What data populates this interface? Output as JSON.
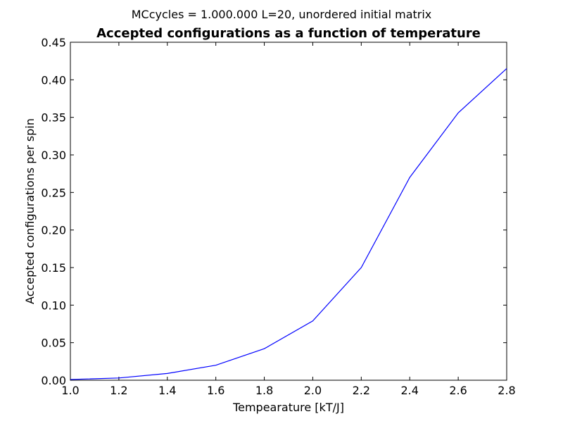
{
  "chart_data": {
    "type": "line",
    "suptitle": "MCcycles = 1.000.000 L=20, unordered initial matrix",
    "title": "Accepted configurations as a function of temperature",
    "xlabel": "Tempearature [kT/J]",
    "ylabel": "Accepted configurations per spin",
    "xlim": [
      1.0,
      2.8
    ],
    "ylim": [
      0.0,
      0.45
    ],
    "xticks": [
      "1.0",
      "1.2",
      "1.4",
      "1.6",
      "1.8",
      "2.0",
      "2.2",
      "2.4",
      "2.6",
      "2.8"
    ],
    "yticks": [
      "0.00",
      "0.05",
      "0.10",
      "0.15",
      "0.20",
      "0.25",
      "0.30",
      "0.35",
      "0.40",
      "0.45"
    ],
    "grid": false,
    "line_color": "#0000ff",
    "series": [
      {
        "x": [
          1.0,
          1.2,
          1.4,
          1.6,
          1.8,
          2.0,
          2.2,
          2.4,
          2.6,
          2.8
        ],
        "values": [
          0.001,
          0.003,
          0.009,
          0.02,
          0.042,
          0.079,
          0.15,
          0.27,
          0.356,
          0.415
        ]
      }
    ]
  }
}
